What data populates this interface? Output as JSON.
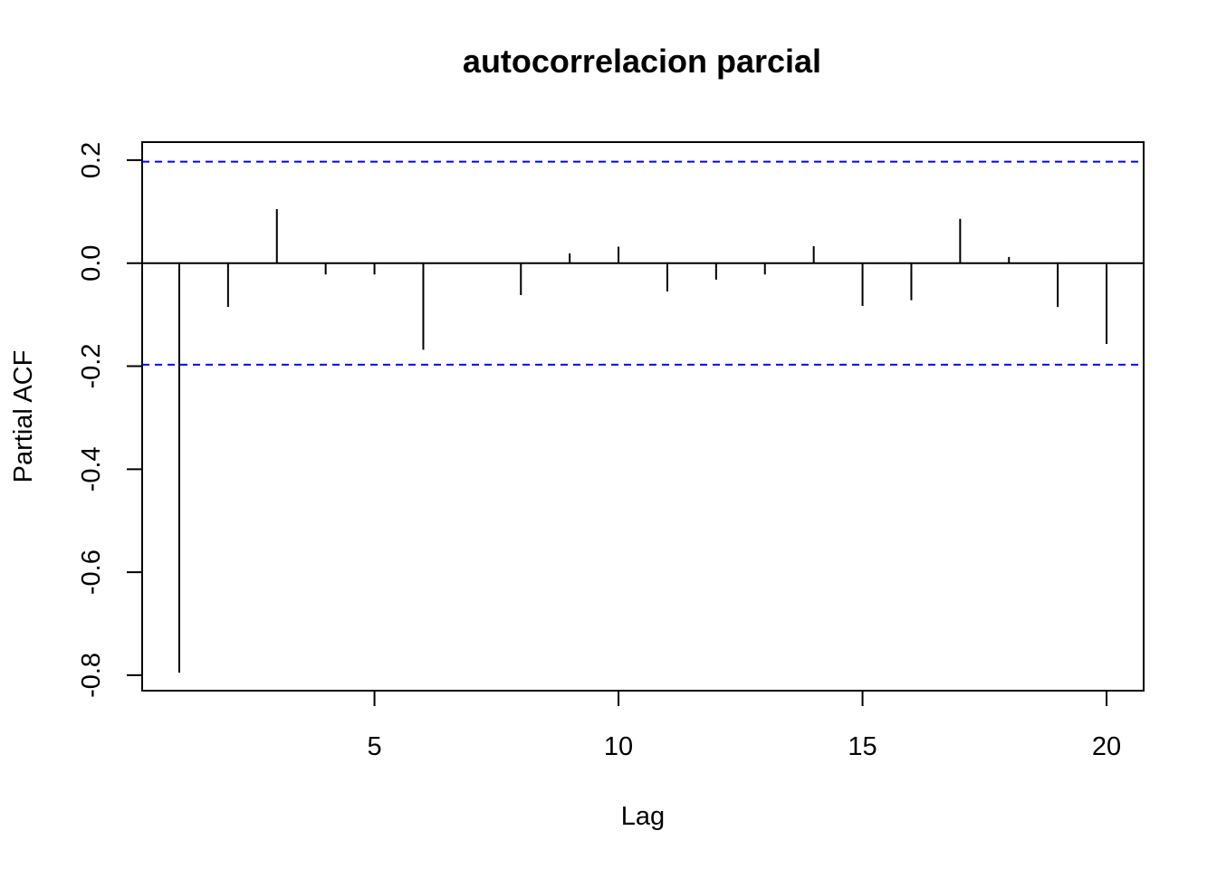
{
  "chart_data": {
    "type": "bar",
    "subtype": "partial-autocorrelation-spikes",
    "title": "autocorrelacion parcial",
    "xlabel": "Lag",
    "ylabel": "Partial ACF",
    "xlim": [
      0.24,
      20.76
    ],
    "ylim": [
      -0.83,
      0.235
    ],
    "x_ticks": [
      5,
      10,
      15,
      20
    ],
    "x_tick_labels": [
      "5",
      "10",
      "15",
      "20"
    ],
    "y_ticks": [
      -0.8,
      -0.6,
      -0.4,
      -0.2,
      0.0,
      0.2
    ],
    "y_tick_labels": [
      "-0.8",
      "-0.6",
      "-0.4",
      "-0.2",
      "0.0",
      "0.2"
    ],
    "lags": [
      1,
      2,
      3,
      4,
      5,
      6,
      7,
      8,
      9,
      10,
      11,
      12,
      13,
      14,
      15,
      16,
      17,
      18,
      19,
      20
    ],
    "values": [
      -0.795,
      -0.085,
      0.105,
      -0.022,
      -0.022,
      -0.168,
      0.0,
      -0.062,
      0.019,
      0.032,
      -0.055,
      -0.032,
      -0.022,
      0.033,
      -0.083,
      -0.072,
      0.086,
      0.012,
      -0.085,
      -0.157
    ],
    "confidence_bound": 0.197,
    "grid": false,
    "colors": {
      "spike": "#000000",
      "confidence_line": "#0000ff",
      "zero_line": "#000000",
      "frame": "#000000"
    }
  }
}
